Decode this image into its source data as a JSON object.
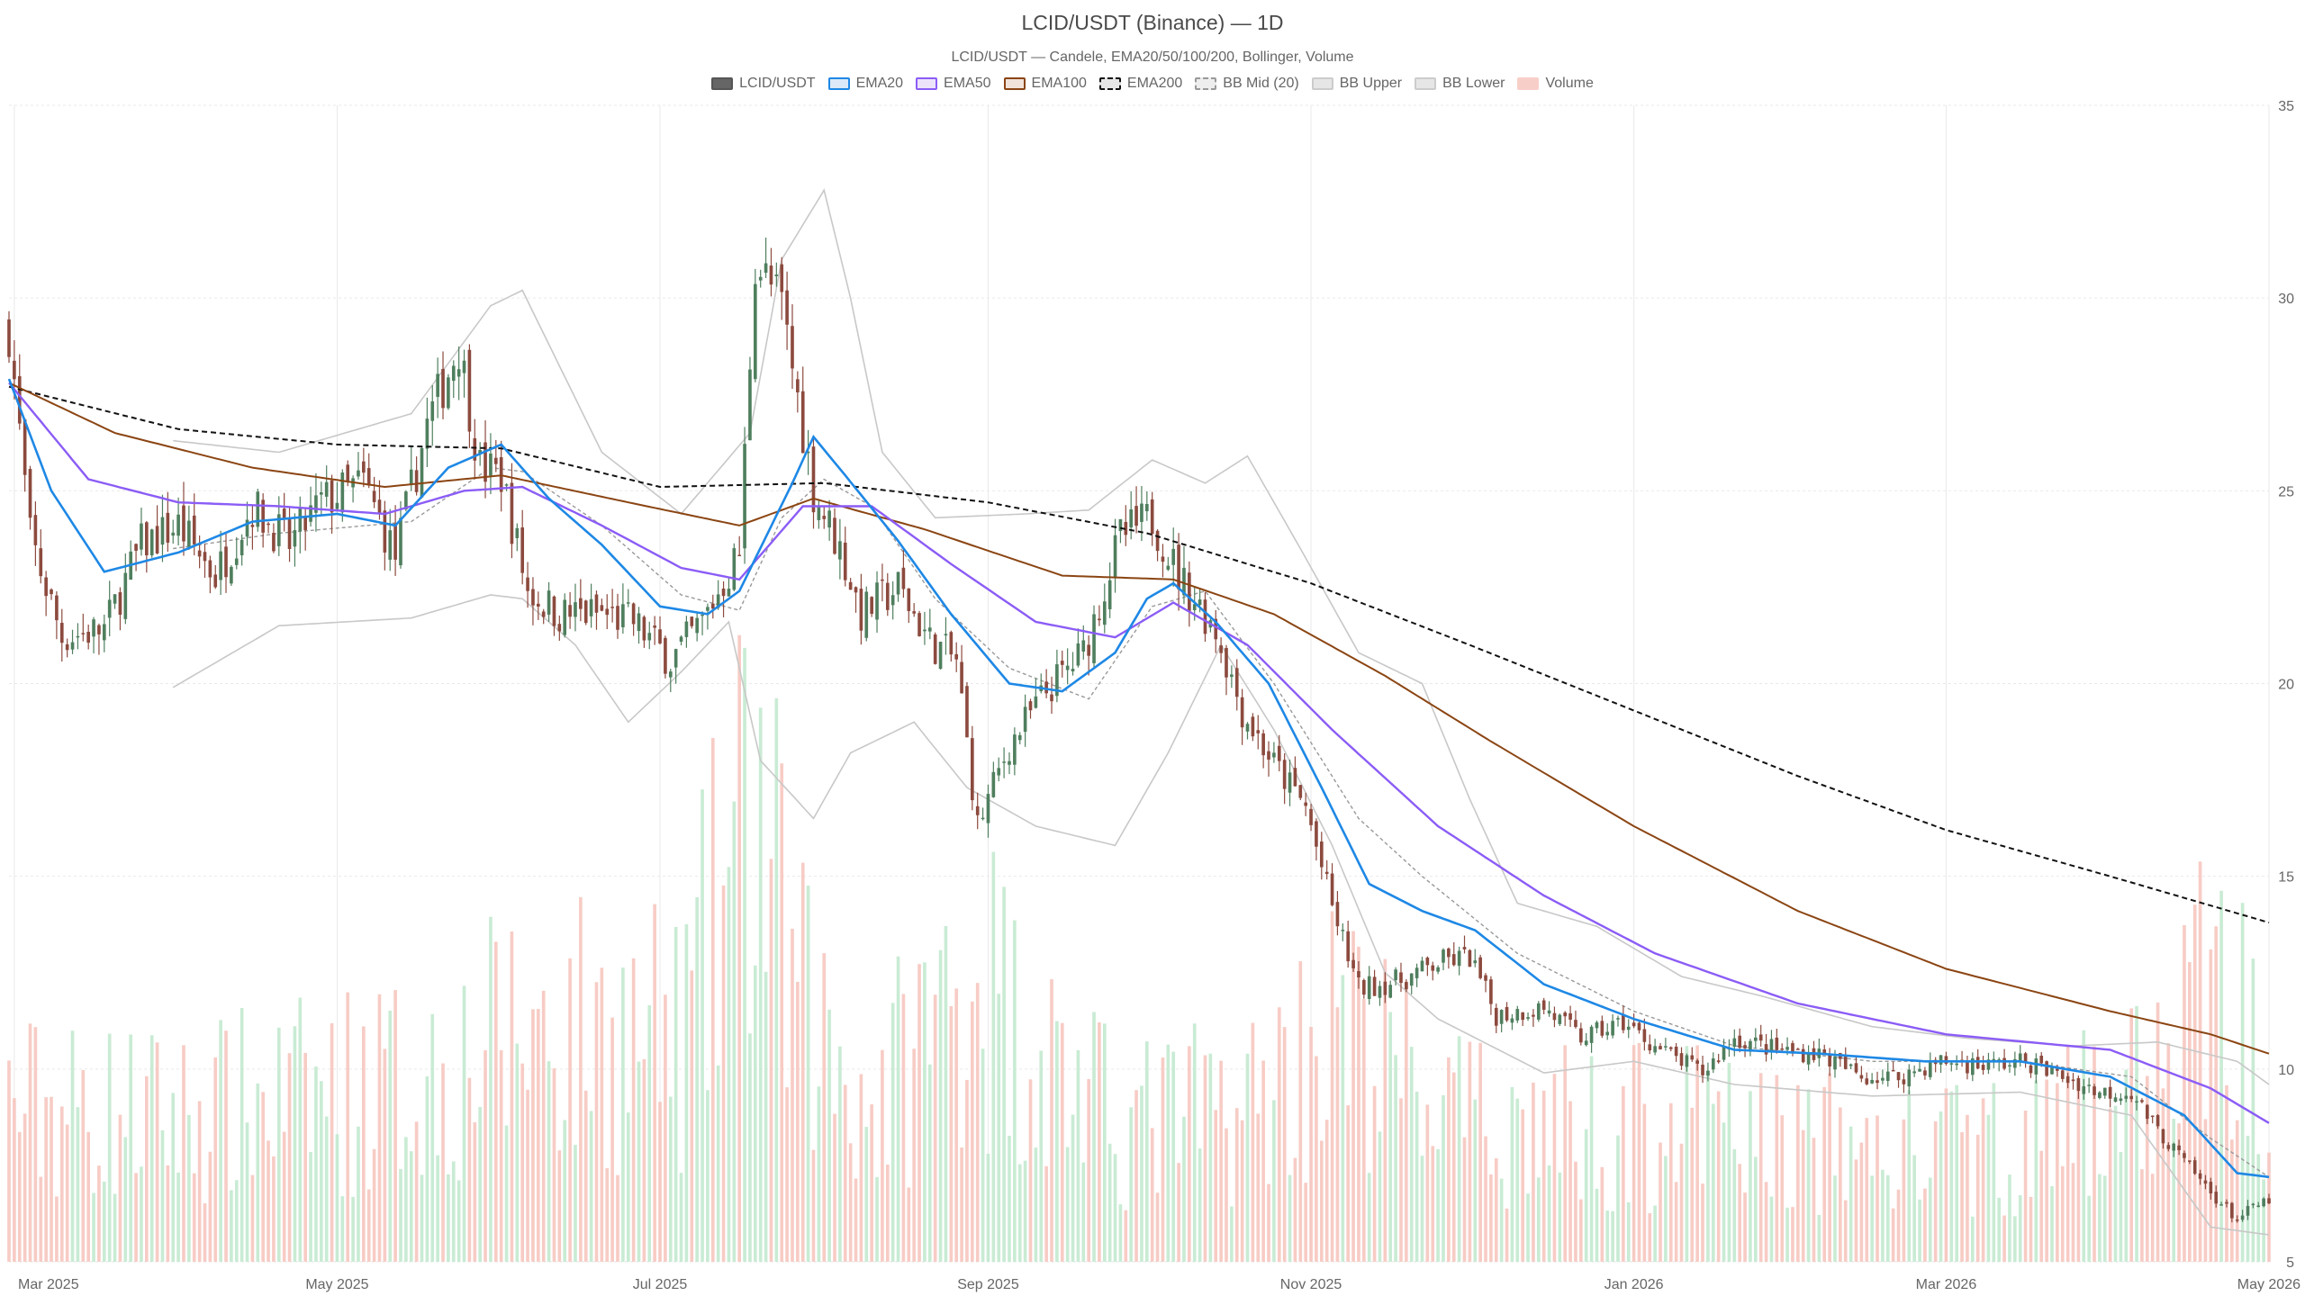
{
  "title": "LCID/USDT (Binance) — 1D",
  "subtitle": "LCID/USDT — Candele, EMA20/50/100/200, Bollinger, Volume",
  "legend": [
    {
      "label": "LCID/USDT",
      "fill": "#666666",
      "stroke": "#555555",
      "dashed": false
    },
    {
      "label": "EMA20",
      "fill": "#dbe9f8",
      "stroke": "#1e88e5",
      "dashed": false
    },
    {
      "label": "EMA50",
      "fill": "#ece3fb",
      "stroke": "#8b5cf6",
      "dashed": false
    },
    {
      "label": "EMA100",
      "fill": "#f1e3da",
      "stroke": "#8b4513",
      "dashed": false
    },
    {
      "label": "EMA200",
      "fill": "#e6e6e6",
      "stroke": "#111111",
      "dashed": true
    },
    {
      "label": "BB Mid (20)",
      "fill": "#eeeeee",
      "stroke": "#999999",
      "dashed": true
    },
    {
      "label": "BB Upper",
      "fill": "#e6e6e6",
      "stroke": "#cccccc",
      "dashed": false
    },
    {
      "label": "BB Lower",
      "fill": "#e6e6e6",
      "stroke": "#cccccc",
      "dashed": false
    },
    {
      "label": "Volume",
      "fill": "#f8cfc8",
      "stroke": "#f8cfc8",
      "dashed": false
    }
  ],
  "colors": {
    "up": "#4f7f5e",
    "down": "#8c4a3e",
    "ema20": "#1e88e5",
    "ema50": "#8b5cf6",
    "ema100": "#8b4513",
    "ema200": "#111111",
    "bb_band": "#c8c8c8",
    "bb_mid": "#999999",
    "vol_up": "#bfe8cc",
    "vol_down": "#f6c3bb",
    "grid": "#e9e9e9"
  },
  "chart_data": {
    "type": "candlestick",
    "x_ticks": [
      "Mar 2025",
      "May 2025",
      "Jul 2025",
      "Sep 2025",
      "Nov 2025",
      "Jan 2026",
      "Mar 2026",
      "May 2026"
    ],
    "y_ticks": [
      "5",
      "10",
      "15",
      "20",
      "25",
      "30",
      "35"
    ],
    "ylim": [
      5,
      35
    ],
    "grid": true,
    "legend_position": "top-center",
    "x_range": [
      "2025-02-28",
      "2026-05-01"
    ],
    "x_tick_dates": [
      "2025-03-01",
      "2025-05-01",
      "2025-07-01",
      "2025-09-01",
      "2025-11-01",
      "2026-01-01",
      "2026-03-01",
      "2026-05-01"
    ],
    "close_anchors": [
      [
        "2025-02-28",
        29.2
      ],
      [
        "2025-03-04",
        23.8
      ],
      [
        "2025-03-10",
        21.2
      ],
      [
        "2025-03-18",
        21.4
      ],
      [
        "2025-03-25",
        23.6
      ],
      [
        "2025-04-01",
        24.1
      ],
      [
        "2025-04-08",
        22.8
      ],
      [
        "2025-04-15",
        24.6
      ],
      [
        "2025-04-22",
        23.6
      ],
      [
        "2025-04-28",
        24.7
      ],
      [
        "2025-05-06",
        25.2
      ],
      [
        "2025-05-12",
        23.3
      ],
      [
        "2025-05-18",
        26.7
      ],
      [
        "2025-05-24",
        28.8
      ],
      [
        "2025-05-28",
        25.6
      ],
      [
        "2025-06-01",
        25.4
      ],
      [
        "2025-06-06",
        22.4
      ],
      [
        "2025-06-12",
        21.8
      ],
      [
        "2025-06-20",
        21.8
      ],
      [
        "2025-06-26",
        21.6
      ],
      [
        "2025-07-03",
        20.6
      ],
      [
        "2025-07-09",
        21.6
      ],
      [
        "2025-07-16",
        23.4
      ],
      [
        "2025-07-19",
        31.0
      ],
      [
        "2025-07-24",
        29.8
      ],
      [
        "2025-07-30",
        25.0
      ],
      [
        "2025-08-04",
        23.5
      ],
      [
        "2025-08-08",
        21.8
      ],
      [
        "2025-08-15",
        22.5
      ],
      [
        "2025-08-21",
        21.1
      ],
      [
        "2025-08-26",
        20.6
      ],
      [
        "2025-08-30",
        16.3
      ],
      [
        "2025-09-05",
        18.4
      ],
      [
        "2025-09-12",
        19.8
      ],
      [
        "2025-09-19",
        20.8
      ],
      [
        "2025-09-26",
        23.8
      ],
      [
        "2025-10-02",
        24.3
      ],
      [
        "2025-10-07",
        22.8
      ],
      [
        "2025-10-14",
        21.4
      ],
      [
        "2025-10-19",
        19.3
      ],
      [
        "2025-10-25",
        17.9
      ],
      [
        "2025-10-31",
        16.8
      ],
      [
        "2025-11-05",
        14.2
      ],
      [
        "2025-11-10",
        12.1
      ],
      [
        "2025-11-18",
        12.3
      ],
      [
        "2025-11-26",
        12.8
      ],
      [
        "2025-12-01",
        12.9
      ],
      [
        "2025-12-06",
        11.4
      ],
      [
        "2025-12-15",
        11.6
      ],
      [
        "2025-12-22",
        10.8
      ],
      [
        "2025-12-30",
        11.2
      ],
      [
        "2026-01-06",
        10.5
      ],
      [
        "2026-01-14",
        9.9
      ],
      [
        "2026-01-20",
        10.8
      ],
      [
        "2026-01-28",
        10.5
      ],
      [
        "2026-02-05",
        10.4
      ],
      [
        "2026-02-13",
        9.8
      ],
      [
        "2026-02-20",
        9.8
      ],
      [
        "2026-02-28",
        10.2
      ],
      [
        "2026-03-08",
        10.1
      ],
      [
        "2026-03-16",
        10.2
      ],
      [
        "2026-03-23",
        9.8
      ],
      [
        "2026-03-30",
        9.4
      ],
      [
        "2026-04-05",
        9.4
      ],
      [
        "2026-04-10",
        8.4
      ],
      [
        "2026-04-15",
        7.6
      ],
      [
        "2026-04-20",
        6.8
      ],
      [
        "2026-04-25",
        6.1
      ],
      [
        "2026-04-28",
        6.4
      ],
      [
        "2026-05-01",
        6.6
      ]
    ],
    "ema20": [
      [
        "2025-02-28",
        27.9
      ],
      [
        "2025-03-08",
        25.0
      ],
      [
        "2025-03-18",
        22.9
      ],
      [
        "2025-04-01",
        23.4
      ],
      [
        "2025-04-15",
        24.2
      ],
      [
        "2025-05-01",
        24.4
      ],
      [
        "2025-05-12",
        24.1
      ],
      [
        "2025-05-22",
        25.6
      ],
      [
        "2025-06-01",
        26.2
      ],
      [
        "2025-06-10",
        24.8
      ],
      [
        "2025-06-20",
        23.6
      ],
      [
        "2025-07-01",
        22.0
      ],
      [
        "2025-07-10",
        21.8
      ],
      [
        "2025-07-16",
        22.4
      ],
      [
        "2025-07-26",
        25.2
      ],
      [
        "2025-07-30",
        26.4
      ],
      [
        "2025-08-05",
        25.4
      ],
      [
        "2025-08-15",
        23.7
      ],
      [
        "2025-08-25",
        21.8
      ],
      [
        "2025-09-05",
        20.0
      ],
      [
        "2025-09-15",
        19.8
      ],
      [
        "2025-09-25",
        20.8
      ],
      [
        "2025-10-01",
        22.2
      ],
      [
        "2025-10-06",
        22.6
      ],
      [
        "2025-10-14",
        21.6
      ],
      [
        "2025-10-24",
        20.0
      ],
      [
        "2025-11-03",
        17.3
      ],
      [
        "2025-11-12",
        14.8
      ],
      [
        "2025-11-22",
        14.1
      ],
      [
        "2025-12-02",
        13.6
      ],
      [
        "2025-12-15",
        12.2
      ],
      [
        "2026-01-01",
        11.3
      ],
      [
        "2026-01-20",
        10.5
      ],
      [
        "2026-02-05",
        10.4
      ],
      [
        "2026-02-25",
        10.2
      ],
      [
        "2026-03-15",
        10.2
      ],
      [
        "2026-04-01",
        9.8
      ],
      [
        "2026-04-15",
        8.8
      ],
      [
        "2026-04-25",
        7.3
      ],
      [
        "2026-05-01",
        7.2
      ]
    ],
    "ema50": [
      [
        "2025-02-28",
        27.8
      ],
      [
        "2025-03-15",
        25.3
      ],
      [
        "2025-04-01",
        24.7
      ],
      [
        "2025-04-20",
        24.6
      ],
      [
        "2025-05-10",
        24.4
      ],
      [
        "2025-05-25",
        25.0
      ],
      [
        "2025-06-05",
        25.1
      ],
      [
        "2025-06-20",
        24.1
      ],
      [
        "2025-07-05",
        23.0
      ],
      [
        "2025-07-16",
        22.7
      ],
      [
        "2025-07-28",
        24.6
      ],
      [
        "2025-08-10",
        24.6
      ],
      [
        "2025-08-25",
        23.1
      ],
      [
        "2025-09-10",
        21.6
      ],
      [
        "2025-09-25",
        21.2
      ],
      [
        "2025-10-06",
        22.1
      ],
      [
        "2025-10-20",
        21.0
      ],
      [
        "2025-11-05",
        18.8
      ],
      [
        "2025-11-25",
        16.3
      ],
      [
        "2025-12-15",
        14.5
      ],
      [
        "2026-01-05",
        13.0
      ],
      [
        "2026-02-01",
        11.7
      ],
      [
        "2026-03-01",
        10.9
      ],
      [
        "2026-04-01",
        10.5
      ],
      [
        "2026-04-20",
        9.5
      ],
      [
        "2026-05-01",
        8.6
      ]
    ],
    "ema100": [
      [
        "2025-02-28",
        27.8
      ],
      [
        "2025-03-20",
        26.5
      ],
      [
        "2025-04-15",
        25.6
      ],
      [
        "2025-05-10",
        25.1
      ],
      [
        "2025-06-01",
        25.4
      ],
      [
        "2025-06-25",
        24.7
      ],
      [
        "2025-07-16",
        24.1
      ],
      [
        "2025-07-30",
        24.8
      ],
      [
        "2025-08-20",
        24.0
      ],
      [
        "2025-09-15",
        22.8
      ],
      [
        "2025-10-06",
        22.7
      ],
      [
        "2025-10-25",
        21.8
      ],
      [
        "2025-11-15",
        20.2
      ],
      [
        "2025-12-05",
        18.5
      ],
      [
        "2026-01-01",
        16.3
      ],
      [
        "2026-02-01",
        14.1
      ],
      [
        "2026-03-01",
        12.6
      ],
      [
        "2026-04-01",
        11.5
      ],
      [
        "2026-04-20",
        10.9
      ],
      [
        "2026-05-01",
        10.4
      ]
    ],
    "ema200": [
      [
        "2025-02-28",
        27.7
      ],
      [
        "2025-04-01",
        26.6
      ],
      [
        "2025-05-01",
        26.2
      ],
      [
        "2025-06-01",
        26.1
      ],
      [
        "2025-07-01",
        25.1
      ],
      [
        "2025-08-01",
        25.2
      ],
      [
        "2025-09-01",
        24.7
      ],
      [
        "2025-10-01",
        23.9
      ],
      [
        "2025-11-01",
        22.6
      ],
      [
        "2025-12-01",
        21.0
      ],
      [
        "2026-01-01",
        19.3
      ],
      [
        "2026-02-01",
        17.6
      ],
      [
        "2026-03-01",
        16.2
      ],
      [
        "2026-04-01",
        15.0
      ],
      [
        "2026-05-01",
        13.8
      ]
    ],
    "bb_upper": [
      [
        "2025-03-31",
        26.3
      ],
      [
        "2025-04-20",
        26.0
      ],
      [
        "2025-05-15",
        27.0
      ],
      [
        "2025-05-30",
        29.8
      ],
      [
        "2025-06-05",
        30.2
      ],
      [
        "2025-06-20",
        26.0
      ],
      [
        "2025-07-05",
        24.4
      ],
      [
        "2025-07-18",
        26.5
      ],
      [
        "2025-07-24",
        31.0
      ],
      [
        "2025-08-01",
        32.8
      ],
      [
        "2025-08-06",
        30.0
      ],
      [
        "2025-08-12",
        26.0
      ],
      [
        "2025-08-22",
        24.3
      ],
      [
        "2025-09-08",
        24.4
      ],
      [
        "2025-09-20",
        24.5
      ],
      [
        "2025-10-02",
        25.8
      ],
      [
        "2025-10-12",
        25.2
      ],
      [
        "2025-10-20",
        25.9
      ],
      [
        "2025-10-30",
        23.5
      ],
      [
        "2025-11-10",
        20.8
      ],
      [
        "2025-11-22",
        20.0
      ],
      [
        "2025-12-01",
        17.0
      ],
      [
        "2025-12-10",
        14.3
      ],
      [
        "2025-12-25",
        13.7
      ],
      [
        "2026-01-10",
        12.4
      ],
      [
        "2026-01-25",
        11.9
      ],
      [
        "2026-02-15",
        11.1
      ],
      [
        "2026-03-05",
        10.8
      ],
      [
        "2026-03-25",
        10.6
      ],
      [
        "2026-04-10",
        10.7
      ],
      [
        "2026-04-25",
        10.2
      ],
      [
        "2026-05-01",
        9.6
      ]
    ],
    "bb_mid": [
      [
        "2025-03-31",
        23.5
      ],
      [
        "2025-04-20",
        23.9
      ],
      [
        "2025-05-15",
        24.2
      ],
      [
        "2025-05-30",
        25.6
      ],
      [
        "2025-06-05",
        25.5
      ],
      [
        "2025-06-20",
        24.1
      ],
      [
        "2025-07-05",
        22.3
      ],
      [
        "2025-07-16",
        21.9
      ],
      [
        "2025-07-24",
        24.3
      ],
      [
        "2025-08-01",
        25.3
      ],
      [
        "2025-08-10",
        24.6
      ],
      [
        "2025-08-22",
        22.2
      ],
      [
        "2025-09-05",
        20.4
      ],
      [
        "2025-09-20",
        19.6
      ],
      [
        "2025-10-02",
        22.0
      ],
      [
        "2025-10-12",
        22.4
      ],
      [
        "2025-10-25",
        20.0
      ],
      [
        "2025-11-10",
        16.5
      ],
      [
        "2025-11-22",
        15.0
      ],
      [
        "2025-12-10",
        13.0
      ],
      [
        "2026-01-01",
        11.5
      ],
      [
        "2026-01-20",
        10.6
      ],
      [
        "2026-02-15",
        10.2
      ],
      [
        "2026-03-15",
        10.2
      ],
      [
        "2026-04-05",
        9.8
      ],
      [
        "2026-04-20",
        8.2
      ],
      [
        "2026-05-01",
        7.2
      ]
    ],
    "bb_lower": [
      [
        "2025-03-31",
        19.9
      ],
      [
        "2025-04-20",
        21.5
      ],
      [
        "2025-05-15",
        21.7
      ],
      [
        "2025-05-30",
        22.3
      ],
      [
        "2025-06-05",
        22.2
      ],
      [
        "2025-06-15",
        21.0
      ],
      [
        "2025-06-25",
        19.0
      ],
      [
        "2025-07-05",
        20.3
      ],
      [
        "2025-07-14",
        21.6
      ],
      [
        "2025-07-20",
        18.0
      ],
      [
        "2025-07-30",
        16.5
      ],
      [
        "2025-08-06",
        18.2
      ],
      [
        "2025-08-18",
        19.0
      ],
      [
        "2025-08-28",
        17.3
      ],
      [
        "2025-09-10",
        16.3
      ],
      [
        "2025-09-25",
        15.8
      ],
      [
        "2025-10-05",
        18.2
      ],
      [
        "2025-10-15",
        21.0
      ],
      [
        "2025-10-25",
        18.8
      ],
      [
        "2025-11-05",
        15.8
      ],
      [
        "2025-11-15",
        12.5
      ],
      [
        "2025-11-25",
        11.3
      ],
      [
        "2025-12-05",
        10.6
      ],
      [
        "2025-12-15",
        9.9
      ],
      [
        "2026-01-01",
        10.2
      ],
      [
        "2026-01-20",
        9.6
      ],
      [
        "2026-02-15",
        9.3
      ],
      [
        "2026-03-15",
        9.4
      ],
      [
        "2026-04-05",
        8.8
      ],
      [
        "2026-04-20",
        5.9
      ],
      [
        "2026-05-01",
        5.7
      ]
    ],
    "volume_profile": [
      [
        "2025-02-28",
        0.32
      ],
      [
        "2025-04-01",
        0.3
      ],
      [
        "2025-05-20",
        0.38
      ],
      [
        "2025-06-05",
        0.48
      ],
      [
        "2025-07-05",
        0.45
      ],
      [
        "2025-07-19",
        0.95
      ],
      [
        "2025-07-26",
        0.55
      ],
      [
        "2025-08-10",
        0.32
      ],
      [
        "2025-08-30",
        0.62
      ],
      [
        "2025-09-05",
        0.5
      ],
      [
        "2025-09-25",
        0.28
      ],
      [
        "2025-10-20",
        0.32
      ],
      [
        "2025-11-05",
        0.48
      ],
      [
        "2025-12-01",
        0.28
      ],
      [
        "2026-01-10",
        0.28
      ],
      [
        "2026-02-20",
        0.22
      ],
      [
        "2026-03-20",
        0.25
      ],
      [
        "2026-04-10",
        0.38
      ],
      [
        "2026-04-20",
        0.58
      ],
      [
        "2026-05-01",
        0.4
      ]
    ]
  }
}
